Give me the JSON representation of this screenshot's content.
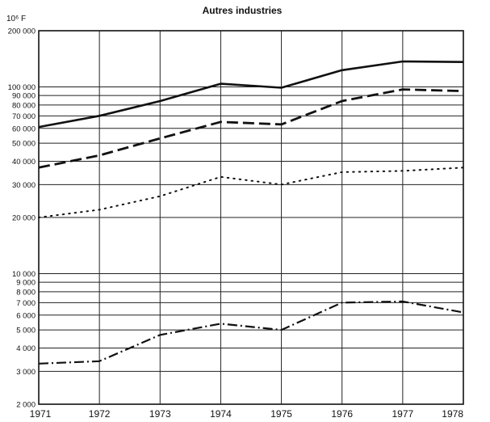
{
  "chart_data": {
    "type": "line",
    "title": "Autres industries",
    "unit_label": "10⁶ F",
    "y_scale": "log",
    "ylim": [
      2000,
      200000
    ],
    "x": [
      1971,
      1972,
      1973,
      1974,
      1975,
      1976,
      1977,
      1978
    ],
    "x_tick_labels": [
      "1971",
      "1972",
      "1973",
      "1974",
      "1975",
      "1976",
      "1977",
      "1978"
    ],
    "y_ticks": [
      {
        "value": 2000,
        "label": "2 000"
      },
      {
        "value": 3000,
        "label": "3 000"
      },
      {
        "value": 4000,
        "label": "4 000"
      },
      {
        "value": 5000,
        "label": "5 000"
      },
      {
        "value": 6000,
        "label": "6 000"
      },
      {
        "value": 7000,
        "label": "7 000"
      },
      {
        "value": 8000,
        "label": "8 000"
      },
      {
        "value": 9000,
        "label": "9 000"
      },
      {
        "value": 10000,
        "label": "10 000"
      },
      {
        "value": 20000,
        "label": "20 000"
      },
      {
        "value": 30000,
        "label": "30 000"
      },
      {
        "value": 40000,
        "label": "40 000"
      },
      {
        "value": 50000,
        "label": "50 000"
      },
      {
        "value": 60000,
        "label": "60 000"
      },
      {
        "value": 70000,
        "label": "70 000"
      },
      {
        "value": 80000,
        "label": "80 000"
      },
      {
        "value": 90000,
        "label": "90 000"
      },
      {
        "value": 100000,
        "label": "100 000"
      },
      {
        "value": 200000,
        "label": "200 000"
      }
    ],
    "grid": true,
    "series": [
      {
        "style": "solid",
        "values": [
          61000,
          70000,
          84000,
          104000,
          99000,
          123000,
          137000,
          136000
        ]
      },
      {
        "style": "dashed",
        "values": [
          37000,
          43000,
          53000,
          65000,
          63000,
          84000,
          97000,
          95000
        ]
      },
      {
        "style": "dotted",
        "values": [
          20000,
          22000,
          26000,
          33000,
          30000,
          35000,
          35500,
          37000
        ]
      },
      {
        "style": "dashdot",
        "values": [
          3300,
          3400,
          4700,
          5400,
          5000,
          7000,
          7100,
          6200
        ]
      }
    ]
  }
}
